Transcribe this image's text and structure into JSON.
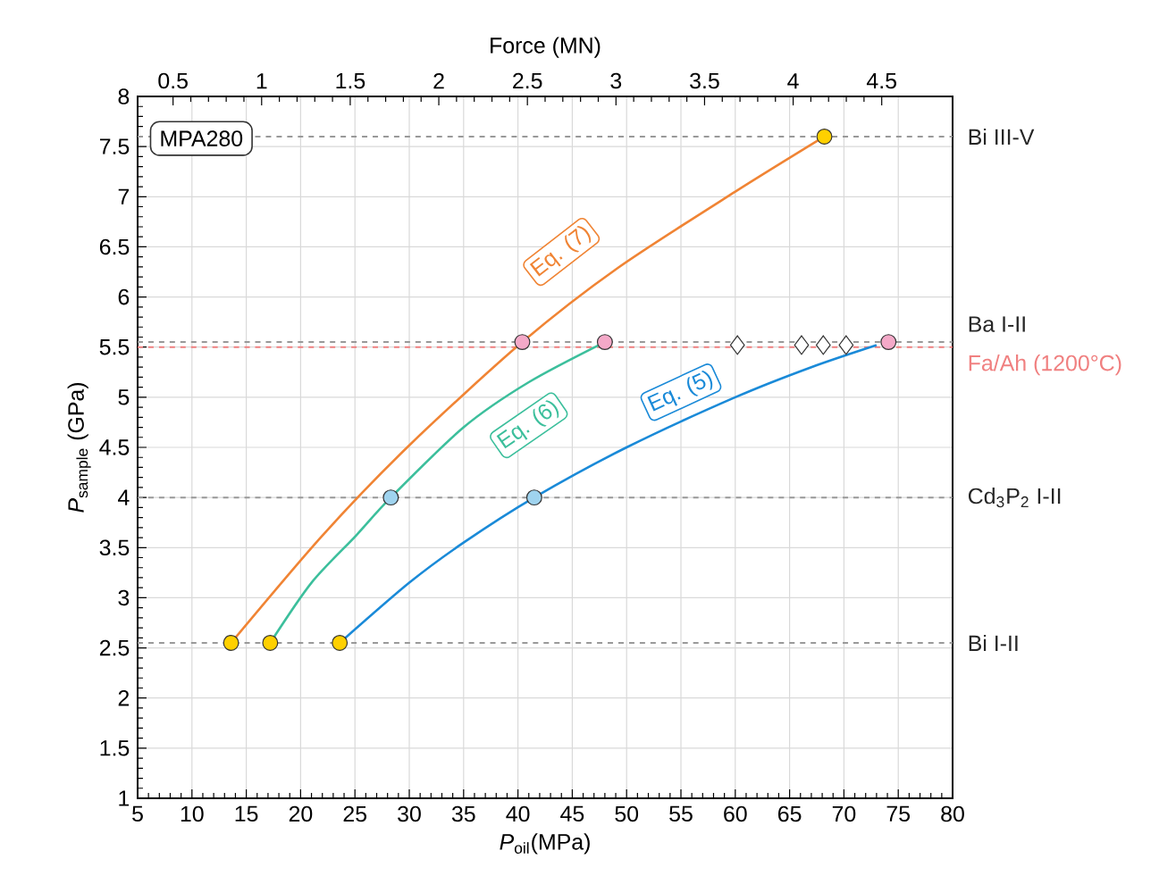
{
  "chart_data": {
    "type": "scatter",
    "xlabel": "*P*$_{oil}$(MPa)",
    "ylabel": "*P*$_{sample}$ (GPa)",
    "x2label": "Force (MN)",
    "xlim": [
      5,
      80
    ],
    "xticks": [
      5,
      10,
      15,
      20,
      25,
      30,
      35,
      40,
      45,
      50,
      55,
      60,
      65,
      70,
      75,
      80
    ],
    "ylim": [
      1,
      8
    ],
    "yticks": [
      1,
      1.5,
      2,
      2.5,
      3,
      3.5,
      4,
      4.5,
      5,
      5.5,
      6,
      6.5,
      7,
      7.5,
      8
    ],
    "x2lim": [
      0.3,
      4.9
    ],
    "x2ticks": [
      0.5,
      1,
      1.5,
      2,
      2.5,
      3,
      3.5,
      4,
      4.5
    ],
    "grid": true,
    "series": [
      {
        "type": "line",
        "color": "#f08434",
        "marker": "none",
        "x": [
          13.6,
          22,
          30,
          40.4,
          49.2,
          60,
          68.2
        ],
        "values": [
          2.55,
          3.62,
          4.52,
          5.55,
          6.29,
          7.05,
          7.6
        ]
      },
      {
        "type": "line",
        "color": "#3cbf9c",
        "marker": "none",
        "x": [
          17.2,
          21,
          25.1,
          28.3,
          35,
          41,
          48
        ],
        "values": [
          2.55,
          3.15,
          3.62,
          4.0,
          4.7,
          5.15,
          5.55
        ]
      },
      {
        "type": "line",
        "color": "#1a8ad8",
        "marker": "none",
        "x": [
          23.6,
          30,
          35,
          41.5,
          50,
          60,
          67,
          73
        ],
        "values": [
          2.55,
          3.15,
          3.55,
          4.0,
          4.5,
          5.0,
          5.3,
          5.52
        ]
      },
      {
        "color": "#ffd000",
        "marker": "circle",
        "x": [
          13.6,
          17.2,
          23.6,
          68.2
        ],
        "values": [
          2.55,
          2.55,
          2.55,
          7.6
        ]
      },
      {
        "color": "#9fd3ee",
        "marker": "circle",
        "x": [
          28.3,
          41.5
        ],
        "values": [
          4.0,
          4.0
        ]
      },
      {
        "color": "#f4a9c8",
        "marker": "circle",
        "x": [
          40.4,
          48,
          74.1
        ],
        "values": [
          5.55,
          5.55,
          5.55
        ]
      },
      {
        "color": "#ffffff",
        "marker": "diamond",
        "x": [
          60.2,
          66.1,
          68.1,
          70.2
        ],
        "values": [
          5.52,
          5.52,
          5.52,
          5.52
        ]
      }
    ],
    "ref_lines": [
      {
        "axis": "y",
        "value": 2.55,
        "label": "Bi I-II",
        "color": "#999999",
        "line_style": "dashed"
      },
      {
        "axis": "y",
        "value": 4.0,
        "label": "Cd$_{3}$P$_{2}$ I-II",
        "color": "#999999",
        "line_style": "dashed"
      },
      {
        "axis": "y",
        "value": 5.55,
        "label": "Ba I-II",
        "color": "#999999",
        "line_style": "dashed"
      },
      {
        "axis": "y",
        "value": 5.5,
        "label": "Fa/Ah (1200°C)",
        "color": "#f08080",
        "line_style": "dashed"
      },
      {
        "axis": "y",
        "value": 7.6,
        "label": "Bi III-V",
        "color": "#999999",
        "line_style": "dashed"
      }
    ],
    "annotations": [
      "MPA280",
      {
        "text": "Eq. (7)",
        "x": 44,
        "y": 6.45
      },
      {
        "text": "Eq. (6)",
        "x": 41,
        "y": 4.72
      },
      {
        "text": "Eq. (5)",
        "x": 55,
        "y": 5.05
      }
    ]
  }
}
